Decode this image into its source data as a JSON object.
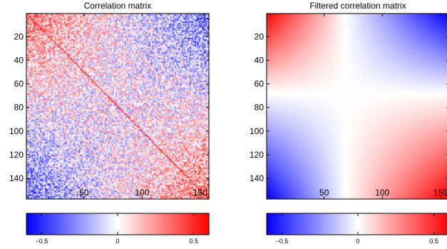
{
  "chart_data": [
    {
      "type": "heatmap",
      "title": "Correlation matrix",
      "size": 157,
      "x_ticks": [
        50,
        100,
        150
      ],
      "y_ticks": [
        20,
        40,
        60,
        80,
        100,
        120,
        140
      ],
      "xlim": [
        1,
        157
      ],
      "ylim": [
        1,
        157
      ],
      "y_axis_direction": "top-to-bottom",
      "pattern": "noisy correlations; positive (red) in the top-left and bottom-right blocks and along the diagonal; negative (blue) in the top-right and bottom-left corners",
      "diagonal_value": 0.55,
      "colorbar": {
        "range": [
          -0.6,
          0.6
        ],
        "ticks": [
          -0.5,
          0,
          0.5
        ],
        "tick_labels": [
          "−0.5",
          "0",
          "0.5"
        ]
      },
      "colormap": {
        "min": "#0000ff",
        "mid": "#ffffff",
        "max": "#ff0000"
      }
    },
    {
      "type": "heatmap",
      "title": "Filtered correlation matrix",
      "size": 157,
      "x_ticks": [
        50,
        100,
        150
      ],
      "y_ticks": [
        20,
        40,
        60,
        80,
        100,
        120,
        140
      ],
      "xlim": [
        1,
        157
      ],
      "ylim": [
        1,
        157
      ],
      "y_axis_direction": "top-to-bottom",
      "split_index": 68,
      "pattern": "smooth four-block structure separated by a white cross at index ~68; red top-left and bottom-right, blue top-right and bottom-left",
      "corner_values": {
        "top_left": 0.45,
        "top_right": -0.45,
        "bottom_left": -0.45,
        "bottom_right": 0.6
      },
      "colorbar": {
        "range": [
          -0.6,
          0.6
        ],
        "ticks": [
          -0.5,
          0,
          0.5
        ],
        "tick_labels": [
          "−0.5",
          "0",
          "0.5"
        ]
      },
      "colormap": {
        "min": "#0000ff",
        "mid": "#ffffff",
        "max": "#ff0000"
      }
    }
  ]
}
